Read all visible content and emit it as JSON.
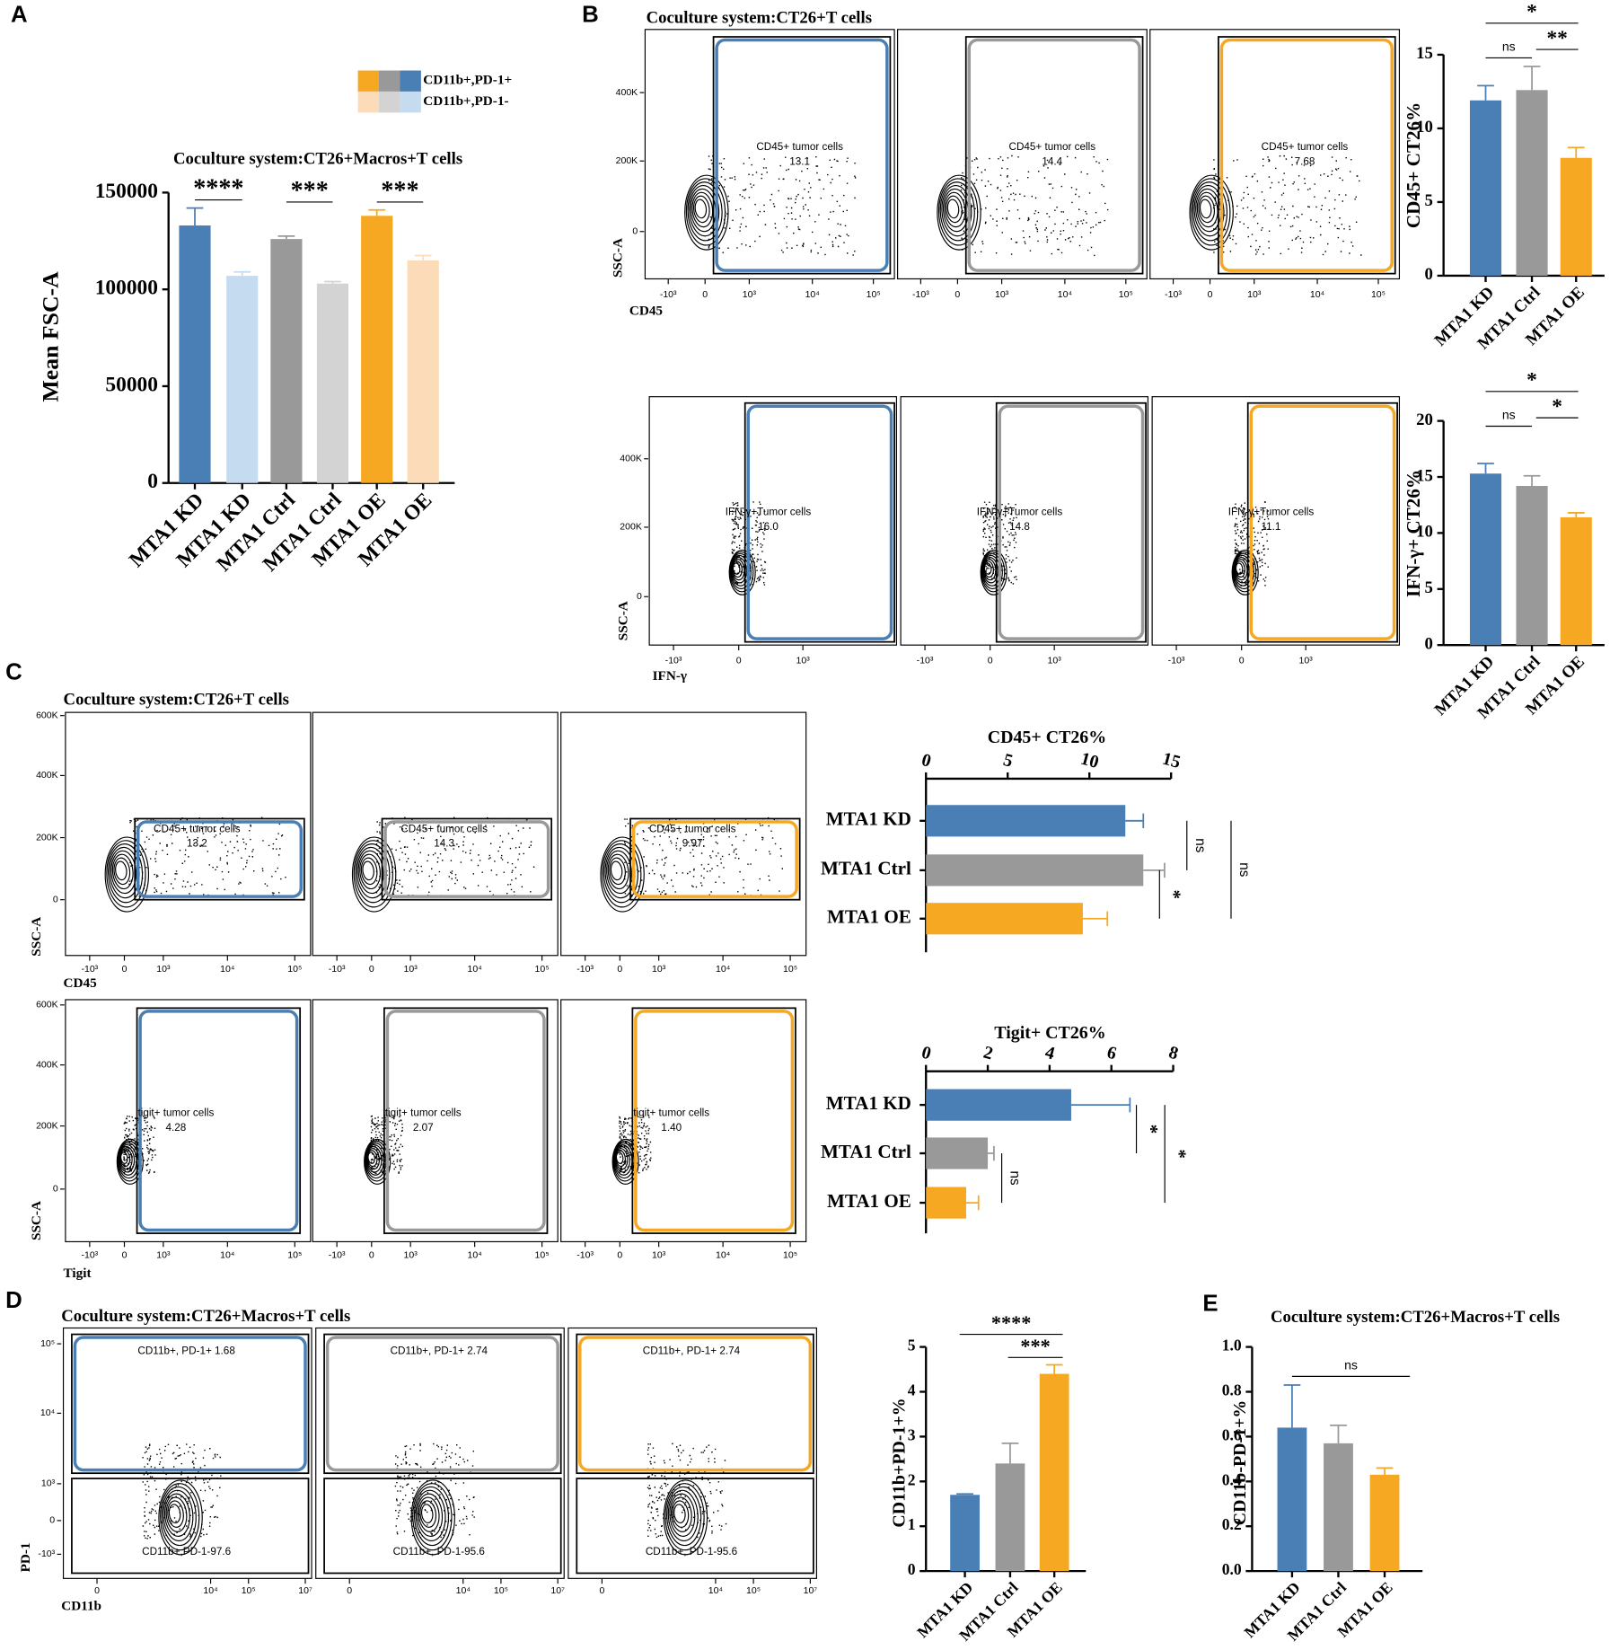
{
  "panel_labels": [
    "A",
    "B",
    "C",
    "D",
    "E"
  ],
  "chart_data": [
    {
      "type": "bar",
      "title": "Coculture system:CT26+Macros+T cells",
      "ylabel": "Mean FSC-A",
      "categories": [
        "MTA1 KD",
        "MTA1 KD",
        "MTA1 Ctrl",
        "MTA1 Ctrl",
        "MTA1 OE",
        "MTA1 OE"
      ],
      "values": [
        133000,
        107000,
        126000,
        103000,
        138000,
        115000
      ],
      "errors": [
        9000,
        2000,
        1500,
        1000,
        3000,
        2500
      ],
      "colors": [
        "#4a7fb5",
        "#c5dcf0",
        "#999999",
        "#d3d3d3",
        "#f7a823",
        "#fcdcb8"
      ],
      "ylim": [
        0,
        150000
      ],
      "yticks": [
        0,
        50000,
        100000,
        150000
      ],
      "legend": [
        {
          "name": "CD11b+,PD-1+",
          "colors": [
            "#f7a823",
            "#999999",
            "#4a7fb5"
          ]
        },
        {
          "name": "CD11b+,PD-1-",
          "colors": [
            "#fcdcb8",
            "#d3d3d3",
            "#c5dcf0"
          ]
        }
      ],
      "annotations": [
        "****",
        "***",
        "***"
      ]
    },
    {
      "type": "bar",
      "ylabel": "CD45+ CT26%",
      "categories": [
        "MTA1 KD",
        "MTA1 Ctrl",
        "MTA1 OE"
      ],
      "values": [
        11.9,
        12.6,
        8.0
      ],
      "errors": [
        1.0,
        1.6,
        0.7
      ],
      "colors": [
        "#4a7fb5",
        "#999999",
        "#f7a823"
      ],
      "ylim": [
        0,
        15
      ],
      "yticks": [
        0,
        5,
        10,
        15
      ],
      "annotations": [
        "*",
        "ns",
        "**"
      ]
    },
    {
      "type": "bar",
      "ylabel": "IFN-γ+ CT26%",
      "categories": [
        "MTA1 KD",
        "MTA1 Ctrl",
        "MTA1 OE"
      ],
      "values": [
        15.3,
        14.2,
        11.4
      ],
      "errors": [
        0.9,
        0.9,
        0.4
      ],
      "colors": [
        "#4a7fb5",
        "#999999",
        "#f7a823"
      ],
      "ylim": [
        0,
        20
      ],
      "yticks": [
        0,
        5,
        10,
        15,
        20
      ],
      "annotations": [
        "*",
        "ns",
        "*"
      ]
    },
    {
      "type": "bar",
      "orientation": "horizontal",
      "title": "CD45+ CT26%",
      "categories": [
        "MTA1 KD",
        "MTA1 Ctrl",
        "MTA1 OE"
      ],
      "values": [
        12.2,
        13.3,
        9.6
      ],
      "errors": [
        1.1,
        1.3,
        1.5
      ],
      "colors": [
        "#4a7fb5",
        "#999999",
        "#f7a823"
      ],
      "xlim": [
        0,
        15
      ],
      "xticks": [
        0,
        5,
        10,
        15
      ],
      "annotations": [
        "ns",
        "*",
        "ns"
      ]
    },
    {
      "type": "bar",
      "orientation": "horizontal",
      "title": "Tigit+ CT26%",
      "categories": [
        "MTA1 KD",
        "MTA1 Ctrl",
        "MTA1 OE"
      ],
      "values": [
        4.7,
        2.0,
        1.3
      ],
      "errors": [
        1.9,
        0.2,
        0.4
      ],
      "colors": [
        "#4a7fb5",
        "#999999",
        "#f7a823"
      ],
      "xlim": [
        0,
        8
      ],
      "xticks": [
        0,
        2,
        4,
        6,
        8
      ],
      "annotations": [
        "*",
        "ns",
        "*"
      ]
    },
    {
      "type": "bar",
      "ylabel": "CD11b+PD-1+%",
      "categories": [
        "MTA1 KD",
        "MTA1 Ctrl",
        "MTA1 OE"
      ],
      "values": [
        1.7,
        2.4,
        4.4
      ],
      "errors": [
        0.02,
        0.45,
        0.2
      ],
      "colors": [
        "#4a7fb5",
        "#999999",
        "#f7a823"
      ],
      "ylim": [
        0,
        5
      ],
      "yticks": [
        0,
        1,
        2,
        3,
        4,
        5
      ],
      "annotations": [
        "****",
        "***"
      ]
    },
    {
      "type": "bar",
      "title": "Coculture system:CT26+Macros+T cells",
      "ylabel": "CD11b-PD-1+%",
      "categories": [
        "MTA1 KD",
        "MTA1 Ctrl",
        "MTA1 OE"
      ],
      "values": [
        0.64,
        0.57,
        0.43
      ],
      "errors": [
        0.19,
        0.08,
        0.03
      ],
      "colors": [
        "#4a7fb5",
        "#999999",
        "#f7a823"
      ],
      "ylim": [
        0,
        1
      ],
      "yticks": [
        {
          "value": 0,
          "label": "0.0"
        },
        0.2,
        0.4,
        0.6,
        0.8,
        {
          "value": 1,
          "label": "1.0"
        }
      ],
      "annotations": [
        "ns"
      ]
    }
  ],
  "flow_panels": [
    {
      "title": "Coculture system:CT26+T cells",
      "ylabel": "SSC-A",
      "xlabel": "CD45",
      "yticks": [
        "400K",
        "200K",
        "0"
      ],
      "xticks": [
        "-10³",
        "0",
        "10³",
        "10⁴",
        "10⁵"
      ],
      "colors": [
        "#4a7fb5",
        "#999999",
        "#f7a823"
      ],
      "plots": [
        {
          "gates": [
            {
              "label": "CD45+ tumor cells",
              "value": "13.1"
            }
          ]
        },
        {
          "gates": [
            {
              "label": "CD45+ tumor cells",
              "value": "14.4"
            }
          ]
        },
        {
          "gates": [
            {
              "label": "CD45+ tumor cells",
              "value": "7.68"
            }
          ]
        }
      ]
    },
    {
      "ylabel": "SSC-A",
      "xlabel": "IFN-γ",
      "yticks": [
        "400K",
        "200K",
        "0"
      ],
      "xticks": [
        "-10³",
        "0",
        "10³"
      ],
      "colors": [
        "#4a7fb5",
        "#999999",
        "#f7a823"
      ],
      "plots": [
        {
          "gates": [
            {
              "label": "IFN-γ+Tumor cells",
              "value": "16.0"
            }
          ]
        },
        {
          "gates": [
            {
              "label": "IFN-γ+Tumor cells",
              "value": "14.8"
            }
          ]
        },
        {
          "gates": [
            {
              "label": "IFN-γ+Tumor cells",
              "value": "11.1"
            }
          ]
        }
      ]
    },
    {
      "title": "Coculture system:CT26+T cells",
      "ylabel": "SSC-A",
      "xlabel": "CD45",
      "yticks": [
        "600K",
        "400K",
        "200K",
        "0"
      ],
      "xticks": [
        "-10³",
        "0",
        "10³",
        "10⁴",
        "10⁵"
      ],
      "colors": [
        "#4a7fb5",
        "#999999",
        "#f7a823"
      ],
      "plots": [
        {
          "gates": [
            {
              "label": "CD45+ tumor cells",
              "value": "13.2"
            }
          ]
        },
        {
          "gates": [
            {
              "label": "CD45+ tumor cells",
              "value": "14.3"
            }
          ]
        },
        {
          "gates": [
            {
              "label": "CD45+ tumor cells",
              "value": "9.97"
            }
          ]
        }
      ]
    },
    {
      "ylabel": "SSC-A",
      "xlabel": "Tigit",
      "yticks": [
        "600K",
        "400K",
        "200K",
        "0"
      ],
      "xticks": [
        "-10³",
        "0",
        "10³",
        "10⁴",
        "10⁵"
      ],
      "colors": [
        "#4a7fb5",
        "#999999",
        "#f7a823"
      ],
      "plots": [
        {
          "gates": [
            {
              "label": "tigit+ tumor cells",
              "value": "4.28"
            }
          ]
        },
        {
          "gates": [
            {
              "label": "tigit+ tumor cells",
              "value": "2.07"
            }
          ]
        },
        {
          "gates": [
            {
              "label": "tigit+ tumor cells",
              "value": "1.40"
            }
          ]
        }
      ]
    },
    {
      "title": "Coculture system:CT26+Macros+T cells",
      "ylabel": "PD-1",
      "xlabel": "CD11b",
      "yticks": [
        "10⁵",
        "10⁴",
        "10³",
        "0",
        "-10³"
      ],
      "xticks": [
        "0",
        "10⁴",
        "10⁵",
        "10⁷"
      ],
      "colors": [
        "#4a7fb5",
        "#999999",
        "#f7a823"
      ],
      "plots": [
        {
          "gates": [
            {
              "label": "CD11b+, PD-1+ 1.68"
            },
            {
              "label": "CD11b+,PD-1-97.6"
            }
          ]
        },
        {
          "gates": [
            {
              "label": "CD11b+, PD-1+ 2.74"
            },
            {
              "label": "CD11b+, PD-1-95.6"
            }
          ]
        },
        {
          "gates": [
            {
              "label": "CD11b+, PD-1+ 2.74"
            },
            {
              "label": "CD11b+, PD-1-95.6"
            }
          ]
        }
      ]
    }
  ]
}
